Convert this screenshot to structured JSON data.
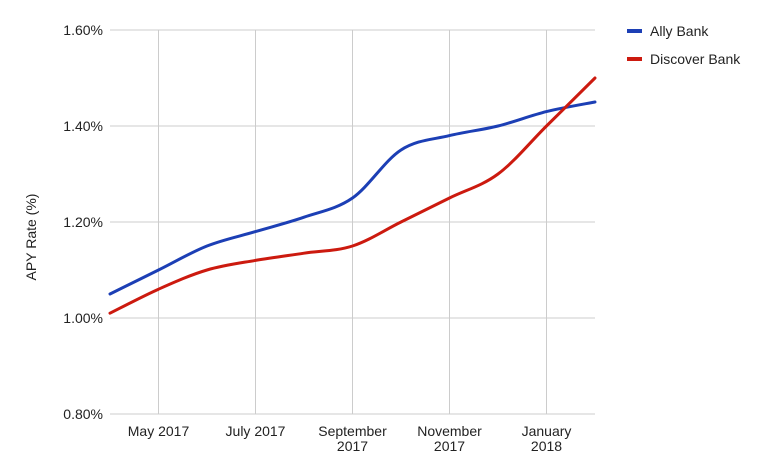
{
  "chart_data": {
    "type": "line",
    "xlabel": "",
    "ylabel": "APY Rate (%)",
    "x": [
      "Apr 2017",
      "May 2017",
      "Jun 2017",
      "Jul 2017",
      "Aug 2017",
      "Sep 2017",
      "Oct 2017",
      "Nov 2017",
      "Dec 2017",
      "Jan 2018",
      "Feb 2018"
    ],
    "x_ticks": [
      {
        "x": "May 2017",
        "lines": [
          "May 2017"
        ]
      },
      {
        "x": "Jul 2017",
        "lines": [
          "July 2017"
        ]
      },
      {
        "x": "Sep 2017",
        "lines": [
          "September",
          "2017"
        ]
      },
      {
        "x": "Nov 2017",
        "lines": [
          "November",
          "2017"
        ]
      },
      {
        "x": "Jan 2018",
        "lines": [
          "January",
          "2018"
        ]
      }
    ],
    "y_ticks": [
      {
        "value": 0.8,
        "label": "0.80%"
      },
      {
        "value": 1.0,
        "label": "1.00%"
      },
      {
        "value": 1.2,
        "label": "1.20%"
      },
      {
        "value": 1.4,
        "label": "1.40%"
      },
      {
        "value": 1.6,
        "label": "1.60%"
      }
    ],
    "ylim": [
      0.8,
      1.6
    ],
    "grid": true,
    "legend_position": "top-right",
    "series": [
      {
        "name": "Ally Bank",
        "color": "#1c3fb5",
        "values": [
          1.05,
          1.1,
          1.15,
          1.18,
          1.21,
          1.25,
          1.35,
          1.38,
          1.4,
          1.43,
          1.45
        ]
      },
      {
        "name": "Discover Bank",
        "color": "#cc1a0f",
        "values": [
          1.01,
          1.06,
          1.1,
          1.12,
          1.135,
          1.15,
          1.2,
          1.25,
          1.3,
          1.4,
          1.5
        ]
      }
    ]
  }
}
